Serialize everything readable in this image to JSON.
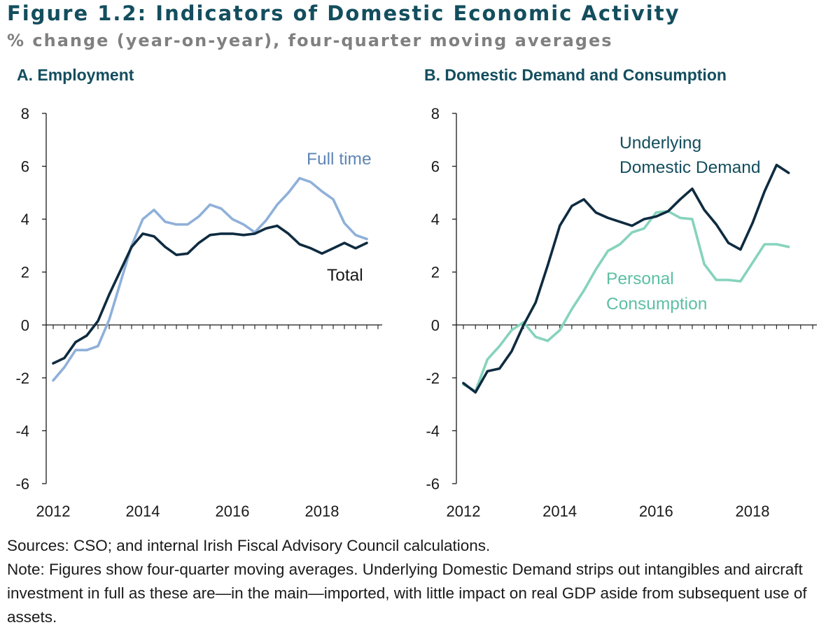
{
  "figure": {
    "title": "Figure 1.2: Indicators of Domestic Economic Activity",
    "subtitle": "% change (year-on-year), four-quarter moving averages"
  },
  "footer": {
    "sources": "Sources: CSO; and internal Irish Fiscal Advisory Council calculations.",
    "note": "Note: Figures show four-quarter moving averages. Underlying Domestic Demand strips out intangibles and aircraft investment in full as these are—in the main—imported, with little impact on real GDP aside from subsequent use of assets."
  },
  "colors": {
    "dark": "#0e2b40",
    "light_blue": "#8fb0d9",
    "teal": "#86d3bd",
    "title_teal": "#134e5e",
    "subtitle_gray": "#808080",
    "full_time_label": "#5e86b5",
    "personal_label": "#5dbfa4"
  },
  "chart_data": [
    {
      "type": "line",
      "title": "A. Employment",
      "xlabel": "",
      "ylabel": "",
      "ylim": [
        -6,
        8
      ],
      "yticks": [
        8,
        6,
        4,
        2,
        0,
        -2,
        -4,
        -6
      ],
      "xlim": [
        2012,
        2019.25
      ],
      "xticks": [
        2012,
        2014,
        2016,
        2018
      ],
      "x": [
        2012.0,
        2012.25,
        2012.5,
        2012.75,
        2013.0,
        2013.25,
        2013.5,
        2013.75,
        2014.0,
        2014.25,
        2014.5,
        2014.75,
        2015.0,
        2015.25,
        2015.5,
        2015.75,
        2016.0,
        2016.25,
        2016.5,
        2016.75,
        2017.0,
        2017.25,
        2017.5,
        2017.75,
        2018.0,
        2018.25,
        2018.5,
        2018.75,
        2019.0
      ],
      "series": [
        {
          "name": "Full time",
          "color": "#8fb0d9",
          "label_color": "#5e86b5",
          "values": [
            -2.1,
            -1.6,
            -0.95,
            -0.95,
            -0.8,
            0.2,
            1.6,
            3.0,
            4.0,
            4.35,
            3.9,
            3.8,
            3.8,
            4.1,
            4.55,
            4.4,
            4.0,
            3.8,
            3.5,
            3.95,
            4.55,
            5.0,
            5.55,
            5.4,
            5.05,
            4.75,
            3.85,
            3.4,
            3.25
          ]
        },
        {
          "name": "Total",
          "color": "#0e2b40",
          "label_color": "#1a1a1a",
          "values": [
            -1.45,
            -1.25,
            -0.65,
            -0.4,
            0.15,
            1.15,
            2.05,
            2.95,
            3.45,
            3.35,
            2.95,
            2.65,
            2.7,
            3.1,
            3.4,
            3.45,
            3.45,
            3.4,
            3.45,
            3.65,
            3.75,
            3.45,
            3.05,
            2.9,
            2.7,
            2.9,
            3.1,
            2.9,
            3.1
          ]
        }
      ],
      "annotations": [
        {
          "text": "Full time",
          "series": "Full time"
        },
        {
          "text": "Total",
          "series": "Total"
        }
      ]
    },
    {
      "type": "line",
      "title": "B. Domestic Demand and Consumption",
      "xlabel": "",
      "ylabel": "",
      "ylim": [
        -6,
        8
      ],
      "yticks": [
        8,
        6,
        4,
        2,
        0,
        -2,
        -4,
        -6
      ],
      "xlim": [
        2012,
        2019.25
      ],
      "xticks": [
        2012,
        2014,
        2016,
        2018
      ],
      "x": [
        2012.0,
        2012.25,
        2012.5,
        2012.75,
        2013.0,
        2013.25,
        2013.5,
        2013.75,
        2014.0,
        2014.25,
        2014.5,
        2014.75,
        2015.0,
        2015.25,
        2015.5,
        2015.75,
        2016.0,
        2016.25,
        2016.5,
        2016.75,
        2017.0,
        2017.25,
        2017.5,
        2017.75,
        2018.0,
        2018.25,
        2018.5,
        2018.75,
        2019.0
      ],
      "series": [
        {
          "name": "Underlying Domestic Demand",
          "color": "#0e2b40",
          "label_color": "#134e5e",
          "values": [
            -2.2,
            -2.55,
            -1.75,
            -1.65,
            -1.0,
            0.0,
            0.85,
            2.25,
            3.75,
            4.5,
            4.75,
            4.25,
            4.05,
            3.9,
            3.75,
            4.0,
            4.1,
            4.3,
            4.75,
            5.15,
            4.35,
            3.8,
            3.1,
            2.85,
            3.85,
            5.05,
            6.05,
            5.75,
            null
          ]
        },
        {
          "name": "Personal Consumption",
          "color": "#86d3bd",
          "label_color": "#5dbfa4",
          "values": [
            -2.25,
            -2.5,
            -1.3,
            -0.8,
            -0.2,
            0.1,
            -0.45,
            -0.6,
            -0.2,
            0.6,
            1.3,
            2.1,
            2.8,
            3.05,
            3.5,
            3.65,
            4.25,
            4.3,
            4.05,
            4.0,
            2.3,
            1.7,
            1.7,
            1.65,
            2.35,
            3.05,
            3.05,
            2.95,
            null
          ]
        }
      ],
      "annotations": [
        {
          "text": "Underlying",
          "series": "Underlying Domestic Demand"
        },
        {
          "text": "Domestic Demand",
          "series": "Underlying Domestic Demand"
        },
        {
          "text": "Personal",
          "series": "Personal Consumption"
        },
        {
          "text": "Consumption",
          "series": "Personal Consumption"
        }
      ]
    }
  ]
}
